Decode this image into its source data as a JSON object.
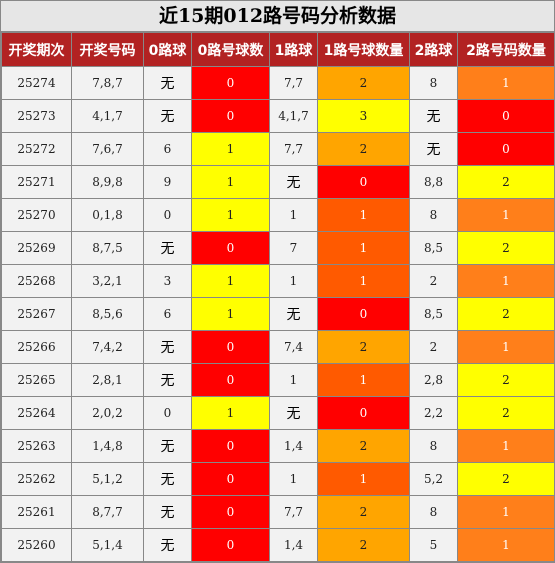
{
  "title": "近15期012路号码分析数据",
  "headers": [
    "开奖期次",
    "开奖号码",
    "0路球",
    "0路号球数",
    "1路球",
    "1路号球数量",
    "2路球",
    "2路号码数量"
  ],
  "colors": {
    "header_bg": "#b22222",
    "red": "#ff0000",
    "yellow": "#ffff00",
    "orange": "#ffa500",
    "dark_orange": "#ff5a00",
    "light_orange": "#ff7f1a"
  },
  "rows": [
    {
      "issue": "25274",
      "numbers": "7,8,7",
      "r0": "无",
      "c0": "0",
      "r1": "7,7",
      "c1": "2",
      "r2": "8",
      "c2": "1"
    },
    {
      "issue": "25273",
      "numbers": "4,1,7",
      "r0": "无",
      "c0": "0",
      "r1": "4,1,7",
      "c1": "3",
      "r2": "无",
      "c2": "0"
    },
    {
      "issue": "25272",
      "numbers": "7,6,7",
      "r0": "6",
      "c0": "1",
      "r1": "7,7",
      "c1": "2",
      "r2": "无",
      "c2": "0"
    },
    {
      "issue": "25271",
      "numbers": "8,9,8",
      "r0": "9",
      "c0": "1",
      "r1": "无",
      "c1": "0",
      "r2": "8,8",
      "c2": "2"
    },
    {
      "issue": "25270",
      "numbers": "0,1,8",
      "r0": "0",
      "c0": "1",
      "r1": "1",
      "c1": "1",
      "r2": "8",
      "c2": "1"
    },
    {
      "issue": "25269",
      "numbers": "8,7,5",
      "r0": "无",
      "c0": "0",
      "r1": "7",
      "c1": "1",
      "r2": "8,5",
      "c2": "2"
    },
    {
      "issue": "25268",
      "numbers": "3,2,1",
      "r0": "3",
      "c0": "1",
      "r1": "1",
      "c1": "1",
      "r2": "2",
      "c2": "1"
    },
    {
      "issue": "25267",
      "numbers": "8,5,6",
      "r0": "6",
      "c0": "1",
      "r1": "无",
      "c1": "0",
      "r2": "8,5",
      "c2": "2"
    },
    {
      "issue": "25266",
      "numbers": "7,4,2",
      "r0": "无",
      "c0": "0",
      "r1": "7,4",
      "c1": "2",
      "r2": "2",
      "c2": "1"
    },
    {
      "issue": "25265",
      "numbers": "2,8,1",
      "r0": "无",
      "c0": "0",
      "r1": "1",
      "c1": "1",
      "r2": "2,8",
      "c2": "2"
    },
    {
      "issue": "25264",
      "numbers": "2,0,2",
      "r0": "0",
      "c0": "1",
      "r1": "无",
      "c1": "0",
      "r2": "2,2",
      "c2": "2"
    },
    {
      "issue": "25263",
      "numbers": "1,4,8",
      "r0": "无",
      "c0": "0",
      "r1": "1,4",
      "c1": "2",
      "r2": "8",
      "c2": "1"
    },
    {
      "issue": "25262",
      "numbers": "5,1,2",
      "r0": "无",
      "c0": "0",
      "r1": "1",
      "c1": "1",
      "r2": "5,2",
      "c2": "2"
    },
    {
      "issue": "25261",
      "numbers": "8,7,7",
      "r0": "无",
      "c0": "0",
      "r1": "7,7",
      "c1": "2",
      "r2": "8",
      "c2": "1"
    },
    {
      "issue": "25260",
      "numbers": "5,1,4",
      "r0": "无",
      "c0": "0",
      "r1": "1,4",
      "c1": "2",
      "r2": "5",
      "c2": "1"
    }
  ]
}
